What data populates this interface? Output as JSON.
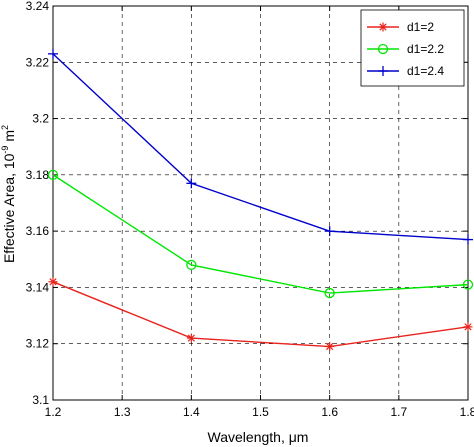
{
  "chart_data": {
    "type": "line",
    "xlabel": "Wavelength, μm",
    "ylabel_main": "Effective Area, 10",
    "ylabel_exp": "-9",
    "ylabel_unit": " m",
    "ylabel_unit_exp": "2",
    "xlim": [
      1.2,
      1.8
    ],
    "ylim": [
      3.1,
      3.24
    ],
    "xticks": [
      "1.2",
      "1.3",
      "1.4",
      "1.5",
      "1.6",
      "1.7",
      "1.8"
    ],
    "yticks": [
      "3.1",
      "3.12",
      "3.14",
      "3.16",
      "3.18",
      "3.2",
      "3.22",
      "3.24"
    ],
    "grid": true,
    "legend_position": "top-right",
    "x": [
      1.2,
      1.4,
      1.6,
      1.8
    ],
    "series": [
      {
        "name": "d1=2",
        "color": "#e8231c",
        "marker": "asterisk",
        "values": [
          3.142,
          3.122,
          3.119,
          3.126
        ]
      },
      {
        "name": "d1=2.2",
        "color": "#00e600",
        "marker": "circle",
        "values": [
          3.18,
          3.148,
          3.138,
          3.141
        ]
      },
      {
        "name": "d1=2.4",
        "color": "#0000cc",
        "marker": "plus",
        "values": [
          3.223,
          3.177,
          3.16,
          3.157
        ]
      }
    ]
  }
}
